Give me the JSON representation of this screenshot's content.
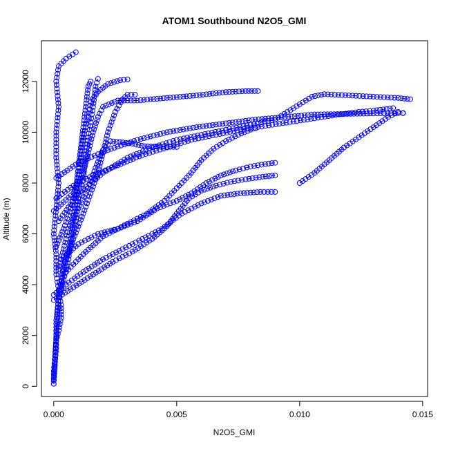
{
  "chart_data": {
    "type": "scatter",
    "title": "ATOM1 Southbound N2O5_GMI",
    "xlabel": "N2O5_GMI",
    "ylabel": "Altitude (m)",
    "xlim": [
      -0.0005,
      0.0152
    ],
    "ylim": [
      -400,
      13600
    ],
    "xticks": [
      0.0,
      0.005,
      0.01,
      0.015
    ],
    "xtick_labels": [
      "0.000",
      "0.005",
      "0.010",
      "0.015"
    ],
    "yticks": [
      0,
      2000,
      4000,
      6000,
      8000,
      10000,
      12000
    ],
    "ytick_labels": [
      "0",
      "2000",
      "4000",
      "6000",
      "8000",
      "10000",
      "12000"
    ],
    "marker": "open-circle",
    "marker_color": "#0000ff",
    "grid": false,
    "legend": "none",
    "series": [
      {
        "profile": [
          [
            0.0,
            100
          ],
          [
            0.0,
            600
          ],
          [
            5e-05,
            1200
          ],
          [
            0.0001,
            1800
          ],
          [
            0.0002,
            2200
          ],
          [
            0.0003,
            2700
          ],
          [
            0.0003,
            3200
          ],
          [
            0.0002,
            3800
          ],
          [
            0.0001,
            4400
          ],
          [
            0.0001,
            5200
          ],
          [
            0.0,
            6000
          ],
          [
            0.0001,
            7000
          ],
          [
            0.0002,
            8000
          ],
          [
            0.0001,
            9000
          ],
          [
            0.0001,
            10000
          ],
          [
            0.0002,
            11000
          ],
          [
            0.0001,
            12000
          ],
          [
            0.0002,
            12600
          ],
          [
            0.0005,
            12900
          ],
          [
            0.0009,
            13150
          ]
        ]
      },
      {
        "profile": [
          [
            0.0,
            300
          ],
          [
            0.0001,
            1500
          ],
          [
            0.0001,
            2600
          ],
          [
            0.0002,
            3500
          ],
          [
            0.0004,
            4200
          ],
          [
            0.0006,
            5000
          ],
          [
            0.0007,
            5800
          ],
          [
            0.0008,
            6600
          ],
          [
            0.0009,
            7400
          ],
          [
            0.001,
            8200
          ],
          [
            0.0011,
            9000
          ],
          [
            0.0012,
            9800
          ],
          [
            0.0014,
            10600
          ],
          [
            0.0015,
            11200
          ],
          [
            0.0018,
            11600
          ],
          [
            0.0022,
            11900
          ],
          [
            0.0027,
            12050
          ],
          [
            0.003,
            12080
          ]
        ]
      },
      {
        "profile": [
          [
            0.0003,
            4000
          ],
          [
            0.0005,
            5000
          ],
          [
            0.0008,
            5800
          ],
          [
            0.0012,
            6800
          ],
          [
            0.0015,
            7600
          ],
          [
            0.0018,
            8400
          ],
          [
            0.002,
            9200
          ],
          [
            0.0022,
            10000
          ],
          [
            0.0025,
            10800
          ],
          [
            0.0028,
            11300
          ],
          [
            0.003,
            11480
          ],
          [
            0.0033,
            11480
          ]
        ]
      },
      {
        "profile": [
          [
            0.0002,
            4600
          ],
          [
            0.0004,
            5400
          ],
          [
            0.0006,
            6200
          ],
          [
            0.001,
            7000
          ],
          [
            0.0014,
            7800
          ],
          [
            0.0017,
            8600
          ],
          [
            0.002,
            9300
          ],
          [
            0.0023,
            9650
          ],
          [
            0.0028,
            9600
          ],
          [
            0.0032,
            9550
          ],
          [
            0.0037,
            9450
          ],
          [
            0.0042,
            9430
          ],
          [
            0.005,
            9420
          ]
        ]
      },
      {
        "profile": [
          [
            0.0005,
            4500
          ],
          [
            0.0012,
            5200
          ],
          [
            0.002,
            5900
          ],
          [
            0.003,
            6400
          ],
          [
            0.0038,
            6800
          ],
          [
            0.0045,
            7300
          ],
          [
            0.005,
            7800
          ],
          [
            0.0055,
            8300
          ],
          [
            0.006,
            8900
          ],
          [
            0.0065,
            9350
          ],
          [
            0.007,
            9650
          ],
          [
            0.0075,
            9900
          ],
          [
            0.008,
            10100
          ],
          [
            0.0082,
            10150
          ]
        ]
      },
      {
        "profile": [
          [
            0.0003,
            5000
          ],
          [
            0.001,
            5600
          ],
          [
            0.0018,
            6000
          ],
          [
            0.0026,
            6200
          ],
          [
            0.0034,
            6500
          ],
          [
            0.0042,
            7000
          ],
          [
            0.005,
            7300
          ],
          [
            0.0056,
            7600
          ],
          [
            0.0062,
            8000
          ],
          [
            0.0068,
            8300
          ],
          [
            0.0074,
            8500
          ],
          [
            0.008,
            8650
          ],
          [
            0.0086,
            8750
          ],
          [
            0.009,
            8800
          ]
        ]
      },
      {
        "profile": [
          [
            0.0,
            3400
          ],
          [
            0.0008,
            3900
          ],
          [
            0.0016,
            4400
          ],
          [
            0.0024,
            4900
          ],
          [
            0.0032,
            5300
          ],
          [
            0.004,
            5800
          ],
          [
            0.0046,
            6300
          ],
          [
            0.005,
            6800
          ],
          [
            0.0055,
            7400
          ],
          [
            0.006,
            7700
          ],
          [
            0.0066,
            7900
          ],
          [
            0.0072,
            8050
          ],
          [
            0.0078,
            8150
          ],
          [
            0.0085,
            8250
          ],
          [
            0.009,
            8300
          ]
        ]
      },
      {
        "profile": [
          [
            0.0,
            3600
          ],
          [
            0.0005,
            4000
          ],
          [
            0.0012,
            4500
          ],
          [
            0.002,
            5000
          ],
          [
            0.0028,
            5400
          ],
          [
            0.0036,
            5800
          ],
          [
            0.0044,
            6200
          ],
          [
            0.0052,
            6800
          ],
          [
            0.006,
            7200
          ],
          [
            0.0068,
            7500
          ],
          [
            0.0076,
            7600
          ],
          [
            0.0084,
            7650
          ],
          [
            0.009,
            7650
          ]
        ]
      },
      {
        "profile": [
          [
            0.0002,
            6500
          ],
          [
            0.001,
            7600
          ],
          [
            0.002,
            8400
          ],
          [
            0.003,
            9000
          ],
          [
            0.004,
            9400
          ],
          [
            0.005,
            9700
          ],
          [
            0.006,
            9900
          ],
          [
            0.007,
            10100
          ],
          [
            0.008,
            10300
          ],
          [
            0.009,
            10500
          ],
          [
            0.0095,
            10800
          ],
          [
            0.01,
            11100
          ],
          [
            0.0105,
            11400
          ],
          [
            0.011,
            11500
          ],
          [
            0.012,
            11450
          ],
          [
            0.013,
            11400
          ],
          [
            0.014,
            11350
          ],
          [
            0.0145,
            11300
          ]
        ]
      },
      {
        "profile": [
          [
            0.0001,
            7400
          ],
          [
            0.0008,
            7900
          ],
          [
            0.0016,
            8300
          ],
          [
            0.0026,
            8700
          ],
          [
            0.0036,
            9100
          ],
          [
            0.0046,
            9400
          ],
          [
            0.0056,
            9700
          ],
          [
            0.0066,
            9900
          ],
          [
            0.0076,
            10100
          ],
          [
            0.0086,
            10250
          ],
          [
            0.0096,
            10400
          ],
          [
            0.0106,
            10550
          ],
          [
            0.0116,
            10700
          ],
          [
            0.0124,
            10800
          ],
          [
            0.013,
            10850
          ],
          [
            0.0134,
            10900
          ],
          [
            0.0138,
            10950
          ]
        ]
      },
      {
        "profile": [
          [
            0.0001,
            8200
          ],
          [
            0.001,
            8800
          ],
          [
            0.0022,
            9300
          ],
          [
            0.0034,
            9700
          ],
          [
            0.0046,
            10000
          ],
          [
            0.0058,
            10200
          ],
          [
            0.007,
            10350
          ],
          [
            0.0082,
            10500
          ],
          [
            0.0094,
            10600
          ],
          [
            0.0106,
            10700
          ],
          [
            0.0118,
            10720
          ],
          [
            0.013,
            10740
          ],
          [
            0.014,
            10750
          ],
          [
            0.0142,
            10760
          ]
        ]
      },
      {
        "profile": [
          [
            0.0,
            6900
          ],
          [
            0.0008,
            7600
          ],
          [
            0.0012,
            8400
          ],
          [
            0.0014,
            9200
          ],
          [
            0.0016,
            10000
          ],
          [
            0.0018,
            10600
          ],
          [
            0.002,
            11000
          ],
          [
            0.0026,
            11250
          ],
          [
            0.0034,
            11250
          ],
          [
            0.0046,
            11350
          ],
          [
            0.0058,
            11450
          ],
          [
            0.007,
            11580
          ],
          [
            0.0078,
            11620
          ],
          [
            0.0083,
            11620
          ]
        ]
      },
      {
        "profile": [
          [
            0.01,
            8000
          ],
          [
            0.0106,
            8400
          ],
          [
            0.0112,
            8900
          ],
          [
            0.0118,
            9400
          ],
          [
            0.0124,
            9800
          ],
          [
            0.013,
            10200
          ],
          [
            0.0136,
            10600
          ],
          [
            0.014,
            10800
          ],
          [
            0.0142,
            10750
          ]
        ]
      },
      {
        "profile": [
          [
            0.0,
            100
          ],
          [
            0.0001,
            2000
          ],
          [
            0.0002,
            3500
          ],
          [
            0.0004,
            4800
          ],
          [
            0.0007,
            5600
          ],
          [
            0.0009,
            6500
          ],
          [
            0.001,
            7400
          ],
          [
            0.0012,
            8200
          ],
          [
            0.0013,
            9000
          ],
          [
            0.0014,
            9800
          ],
          [
            0.0015,
            10400
          ],
          [
            0.0016,
            11000
          ],
          [
            0.0017,
            11800
          ],
          [
            0.0018,
            12100
          ]
        ]
      },
      {
        "profile": [
          [
            0.0001,
            5500
          ],
          [
            0.0004,
            6200
          ],
          [
            0.0007,
            7000
          ],
          [
            0.0009,
            7800
          ],
          [
            0.001,
            8600
          ],
          [
            0.0011,
            9400
          ],
          [
            0.0012,
            10200
          ],
          [
            0.0013,
            11000
          ],
          [
            0.0014,
            11800
          ],
          [
            0.0015,
            12000
          ]
        ]
      }
    ]
  }
}
